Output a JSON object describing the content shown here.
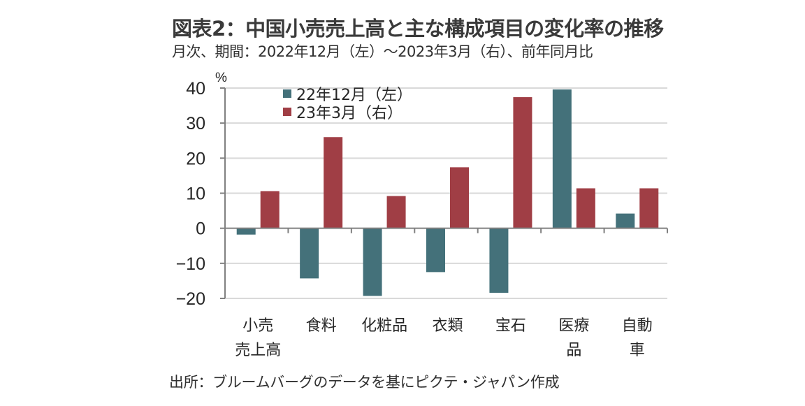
{
  "header": {
    "title": "図表2：中国小売売上高と主な構成項目の変化率の推移",
    "subtitle": "月次、期間：2022年12月（左）～2023年3月（右）、前年同月比"
  },
  "footer": {
    "source": "出所：ブルームバーグのデータを基にピクテ・ジャパン作成"
  },
  "colors": {
    "series_dec22": "#44717A",
    "series_mar23": "#A03E45",
    "gridline": "#D9D9D9",
    "axis": "#808080"
  },
  "chart_data": {
    "type": "bar",
    "title": "図表2：中国小売売上高と主な構成項目の変化率の推移",
    "subtitle": "月次、期間：2022年12月（左）～2023年3月（右）、前年同月比",
    "xlabel": "",
    "ylabel": "%",
    "ylim": [
      -20,
      40
    ],
    "yticks": [
      40,
      30,
      20,
      10,
      0,
      -10,
      -20
    ],
    "ytick_labels": [
      "40",
      "30",
      "20",
      "10",
      "0",
      "−10",
      "−20"
    ],
    "grid": true,
    "legend_position": "top-left",
    "categories": [
      [
        "小売",
        "売上高"
      ],
      [
        "食料"
      ],
      [
        "化粧品"
      ],
      [
        "衣類"
      ],
      [
        "宝石"
      ],
      [
        "医療",
        "品"
      ],
      [
        "自動",
        "車"
      ]
    ],
    "category_names": [
      "小売売上高",
      "食料",
      "化粧品",
      "衣類",
      "宝石",
      "医療品",
      "自動車"
    ],
    "series": [
      {
        "name": "22年12月（左）",
        "color": "#44717A",
        "values": [
          -1.8,
          -14.3,
          -19.3,
          -12.5,
          -18.4,
          39.6,
          4.2
        ]
      },
      {
        "name": "23年3月（右）",
        "color": "#A03E45",
        "values": [
          10.6,
          26.0,
          9.2,
          17.4,
          37.4,
          11.4,
          11.4
        ]
      }
    ]
  }
}
